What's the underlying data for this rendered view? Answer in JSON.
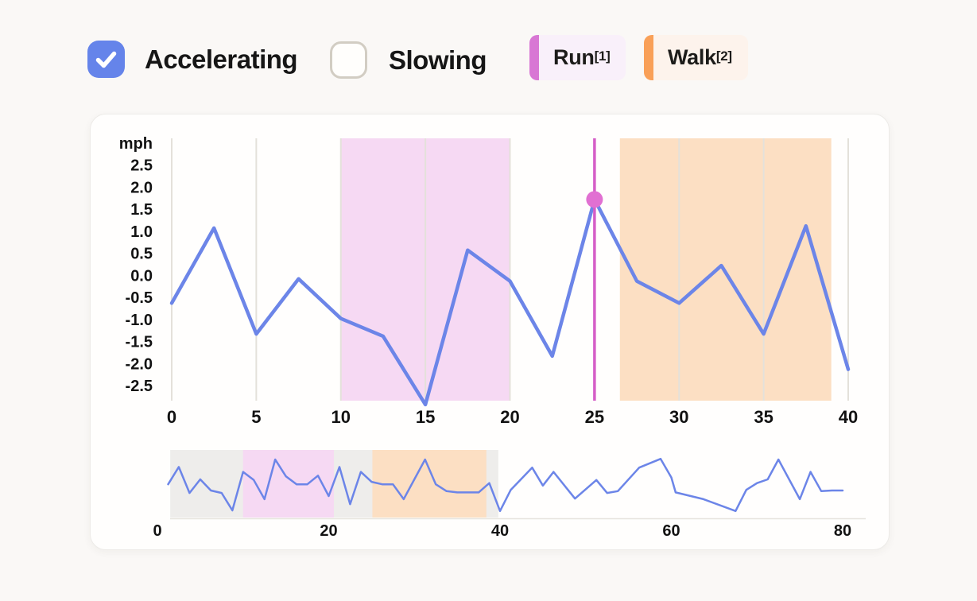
{
  "controls": {
    "accelerating": {
      "label": "Accelerating",
      "checked": true
    },
    "slowing": {
      "label": "Slowing",
      "checked": false
    },
    "run_badge": {
      "label": "Run",
      "superscript": "[1]"
    },
    "walk_badge": {
      "label": "Walk",
      "superscript": "[2]"
    }
  },
  "colors": {
    "page_bg": "#faf8f6",
    "card_bg": "#fffefd",
    "checkbox_blue": "#6584ea",
    "run_accent": "#d877d4",
    "run_bg": "#f9f0fa",
    "walk_accent": "#f9a058",
    "walk_bg": "#fdf3ec",
    "line_blue": "#6c85e8",
    "gridline": "#e4e1da",
    "run_region": "#f6d9f3",
    "walk_region": "#fcdfc3",
    "cursor_magenta": "#d55ec7",
    "marker_dot": "#e170d2",
    "overview_window_gray": "#eeedeb",
    "axis_line": "#e6e3dd"
  },
  "chart_data": {
    "type": "line",
    "title": "",
    "ylabel": "mph",
    "legend": [
      {
        "name": "Run",
        "footnote": "[1]",
        "color": "#d877d4"
      },
      {
        "name": "Walk",
        "footnote": "[2]",
        "color": "#f9a058"
      }
    ],
    "main": {
      "x_start": 0,
      "x_step": 2.5,
      "x_ticks": [
        0,
        5,
        10,
        15,
        20,
        25,
        30,
        35,
        40
      ],
      "y_ticks": [
        "2.5",
        "2.0",
        "1.5",
        "1.0",
        "0.5",
        "0.0",
        "-0.5",
        "-1.0",
        "-1.5",
        "-2.0",
        "-2.5"
      ],
      "ylim": [
        -2.9,
        3.1
      ],
      "grid": "vertical-only",
      "values": [
        -0.6,
        1.1,
        -1.3,
        -0.05,
        -0.95,
        -1.35,
        -2.9,
        0.6,
        -0.1,
        -1.8,
        1.75,
        -0.1,
        -0.6,
        0.25,
        -1.3,
        1.15,
        -2.1
      ],
      "selected_point": {
        "x": 25,
        "value": 1.75
      },
      "regions": [
        {
          "label": "Run",
          "from": 10,
          "to": 20
        },
        {
          "label": "Walk",
          "from": 26.5,
          "to": 39
        }
      ]
    },
    "overview": {
      "x_ticks": [
        0,
        20,
        40,
        60,
        80
      ],
      "xlim": [
        0,
        80
      ],
      "window": {
        "from": 1.5,
        "to": 39.8
      },
      "regions": [
        {
          "label": "Run",
          "from": 10,
          "to": 20.6
        },
        {
          "label": "Walk",
          "from": 25.1,
          "to": 38.4
        }
      ],
      "points_normalized": [
        [
          1.25,
          0.51
        ],
        [
          2.5,
          0.79
        ],
        [
          3.75,
          0.37
        ],
        [
          5,
          0.59
        ],
        [
          6.25,
          0.41
        ],
        [
          7.5,
          0.37
        ],
        [
          8.75,
          0.09
        ],
        [
          10,
          0.71
        ],
        [
          11.25,
          0.58
        ],
        [
          12.5,
          0.27
        ],
        [
          13.75,
          0.91
        ],
        [
          15,
          0.64
        ],
        [
          16.25,
          0.51
        ],
        [
          17.5,
          0.51
        ],
        [
          18.75,
          0.65
        ],
        [
          20,
          0.32
        ],
        [
          21.25,
          0.79
        ],
        [
          22.5,
          0.19
        ],
        [
          23.75,
          0.71
        ],
        [
          25,
          0.55
        ],
        [
          26.25,
          0.51
        ],
        [
          27.5,
          0.51
        ],
        [
          28.75,
          0.27
        ],
        [
          31.25,
          0.91
        ],
        [
          32.5,
          0.51
        ],
        [
          33.75,
          0.4
        ],
        [
          35,
          0.38
        ],
        [
          37.5,
          0.38
        ],
        [
          38.75,
          0.53
        ],
        [
          40,
          0.08
        ],
        [
          41.25,
          0.42
        ],
        [
          43.75,
          0.78
        ],
        [
          45,
          0.49
        ],
        [
          46.25,
          0.71
        ],
        [
          48.75,
          0.28
        ],
        [
          51.25,
          0.58
        ],
        [
          52.5,
          0.37
        ],
        [
          53.75,
          0.4
        ],
        [
          56.25,
          0.78
        ],
        [
          58.75,
          0.92
        ],
        [
          60,
          0.62
        ],
        [
          60.5,
          0.38
        ],
        [
          63.75,
          0.27
        ],
        [
          67.5,
          0.08
        ],
        [
          68.75,
          0.42
        ],
        [
          70,
          0.53
        ],
        [
          71.25,
          0.59
        ],
        [
          72.5,
          0.91
        ],
        [
          75,
          0.27
        ],
        [
          76.25,
          0.71
        ],
        [
          77.5,
          0.4
        ],
        [
          78.75,
          0.41
        ],
        [
          80,
          0.41
        ]
      ]
    }
  }
}
